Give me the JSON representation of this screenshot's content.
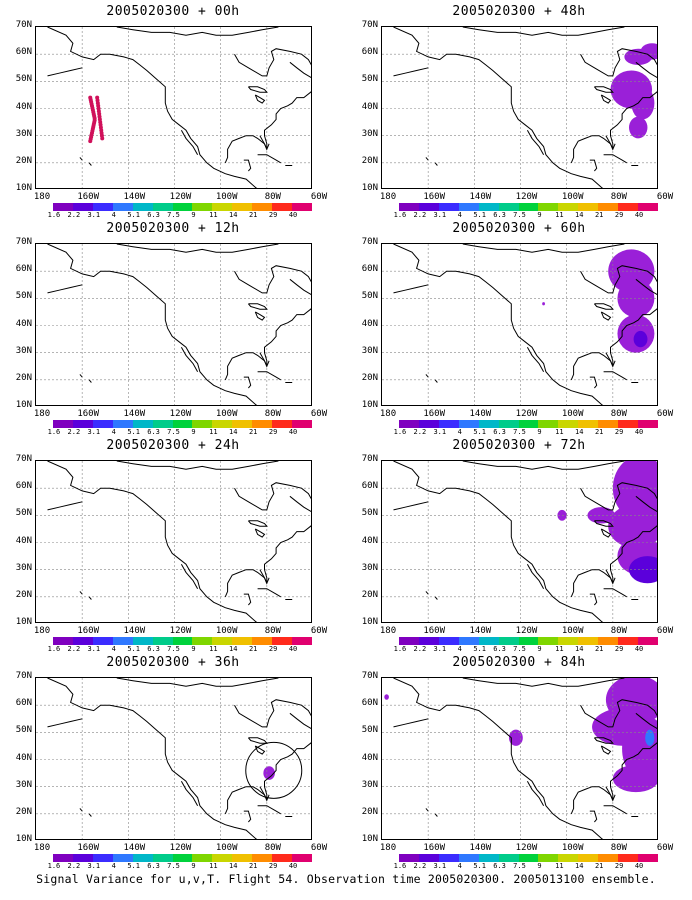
{
  "panels": [
    {
      "title": "2005020300 + 00h",
      "signal": "obs"
    },
    {
      "title": "2005020300 + 48h",
      "signal": "p48"
    },
    {
      "title": "2005020300 + 12h",
      "signal": "none"
    },
    {
      "title": "2005020300 + 60h",
      "signal": "p60"
    },
    {
      "title": "2005020300 + 24h",
      "signal": "none"
    },
    {
      "title": "2005020300 + 72h",
      "signal": "p72"
    },
    {
      "title": "2005020300 + 36h",
      "signal": "p36"
    },
    {
      "title": "2005020300 + 84h",
      "signal": "p84"
    }
  ],
  "y_ticks": [
    "70N",
    "60N",
    "50N",
    "40N",
    "30N",
    "20N",
    "10N"
  ],
  "x_ticks": [
    "180",
    "160W",
    "140W",
    "120W",
    "100W",
    "80W",
    "60W"
  ],
  "colorbar": {
    "colors": [
      "#7f00bf",
      "#5b00db",
      "#3b2cff",
      "#2f78ff",
      "#00b7c8",
      "#00cc8a",
      "#00d23c",
      "#7fd600",
      "#c9d600",
      "#f0c000",
      "#ff8c00",
      "#ff2a1c",
      "#e0006f"
    ],
    "labels": [
      "1.6",
      "2.2",
      "3.1",
      "4",
      "5.1",
      "6.3",
      "7.5",
      "9",
      "11",
      "14",
      "21",
      "29",
      "40"
    ]
  },
  "caption": "Signal Variance for u,v,T. Flight 54. Observation time 2005020300. 2005013100 ensemble."
}
